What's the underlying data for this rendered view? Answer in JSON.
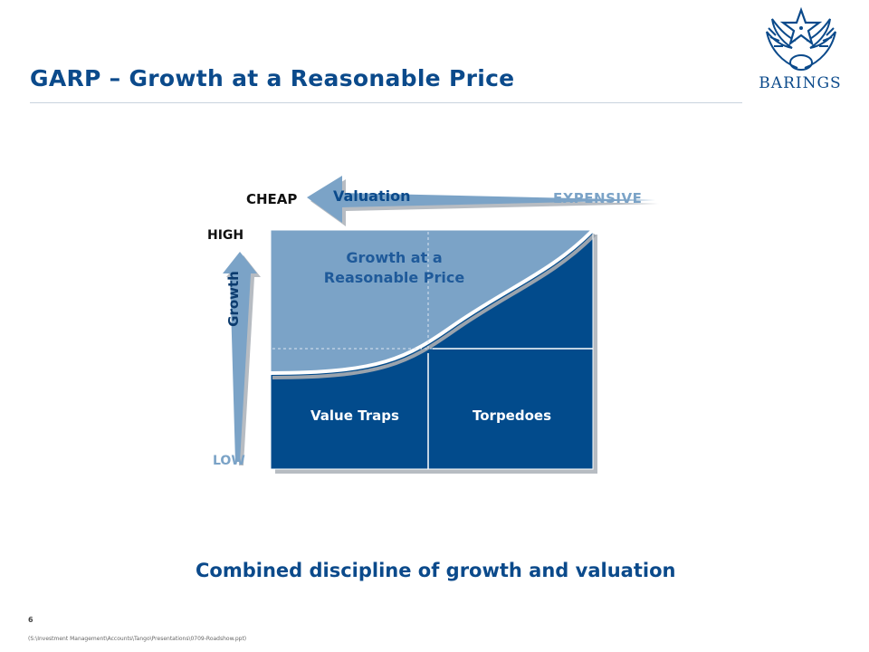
{
  "header": {
    "title": "GARP – Growth at a Reasonable Price",
    "logo_text": "BARINGS"
  },
  "diagram": {
    "valuation_axis": {
      "label": "Valuation",
      "cheap_label": "CHEAP",
      "expensive_label": "EXPENSIVE"
    },
    "growth_axis": {
      "label": "Growth",
      "high_label": "HIGH",
      "low_label": "LOW"
    },
    "regions": {
      "garp": "Growth at a Reasonable Price",
      "value_traps": "Value Traps",
      "torpedoes": "Torpedoes"
    },
    "colors": {
      "light": "#7ba3c7",
      "dark": "#024b8c",
      "title_blue": "#0b4a8b"
    }
  },
  "footer": {
    "tagline": "Combined discipline of growth and valuation",
    "page_number": "6",
    "file_path": "(S:\\Investment Management\\Accounts\\Tango\\Presentations\\0709-Roadshow.ppt)"
  }
}
